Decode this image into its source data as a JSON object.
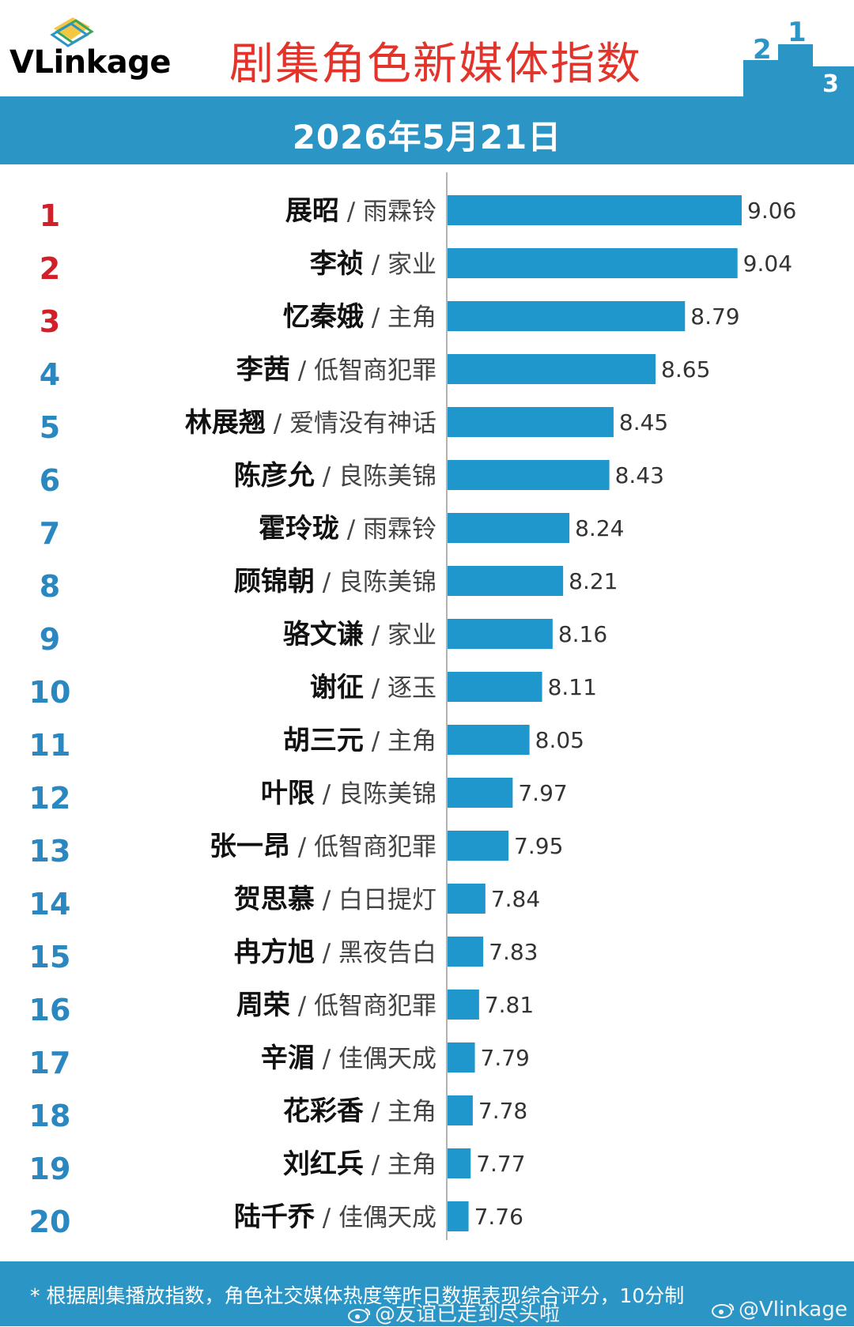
{
  "header": {
    "logo_text": "VLinkage",
    "title": "剧集角色新媒体指数",
    "date": "2026年5月21日"
  },
  "colors": {
    "accent_blue": "#2b95c6",
    "bar_blue": "#1f96cc",
    "title_red": "#e3342b",
    "rank_red": "#d1202a",
    "rank_blue": "#2a87c0"
  },
  "chart_data": {
    "type": "bar",
    "orientation": "horizontal",
    "title": "剧集角色新媒体指数",
    "subtitle": "2026年5月21日",
    "categories": [
      "展昭",
      "李祯",
      "忆秦娥",
      "李茜",
      "林展翘",
      "陈彦允",
      "霍玲珑",
      "顾锦朝",
      "骆文谦",
      "谢征",
      "胡三元",
      "叶限",
      "张一昂",
      "贺思慕",
      "冉方旭",
      "周荣",
      "辛湄",
      "花彩香",
      "刘红兵",
      "陆千乔"
    ],
    "dramas": [
      "雨霖铃",
      "家业",
      "主角",
      "低智商犯罪",
      "爱情没有神话",
      "良陈美锦",
      "雨霖铃",
      "良陈美锦",
      "家业",
      "逐玉",
      "主角",
      "良陈美锦",
      "低智商犯罪",
      "白日提灯",
      "黑夜告白",
      "低智商犯罪",
      "佳偶天成",
      "主角",
      "主角",
      "佳偶天成"
    ],
    "ranks": [
      "1",
      "2",
      "3",
      "4",
      "5",
      "6",
      "7",
      "8",
      "9",
      "10",
      "11",
      "12",
      "13",
      "14",
      "15",
      "16",
      "17",
      "18",
      "19",
      "20"
    ],
    "values": [
      9.06,
      9.04,
      8.79,
      8.65,
      8.45,
      8.43,
      8.24,
      8.21,
      8.16,
      8.11,
      8.05,
      7.97,
      7.95,
      7.84,
      7.83,
      7.81,
      7.79,
      7.78,
      7.77,
      7.76
    ],
    "value_labels": [
      "9.06",
      "9.04",
      "8.79",
      "8.65",
      "8.45",
      "8.43",
      "8.24",
      "8.21",
      "8.16",
      "8.11",
      "8.05",
      "7.97",
      "7.95",
      "7.84",
      "7.83",
      "7.81",
      "7.79",
      "7.78",
      "7.77",
      "7.76"
    ],
    "separator": "/",
    "xlim": [
      7.66,
      9.06
    ],
    "grid": false,
    "legend": "none"
  },
  "footer": {
    "note": "* 根据剧集播放指数，角色社交媒体热度等昨日数据表现综合评分，10分制",
    "watermark_user": "@友谊已走到尽头啦",
    "watermark_brand": "@Vlinkage"
  }
}
